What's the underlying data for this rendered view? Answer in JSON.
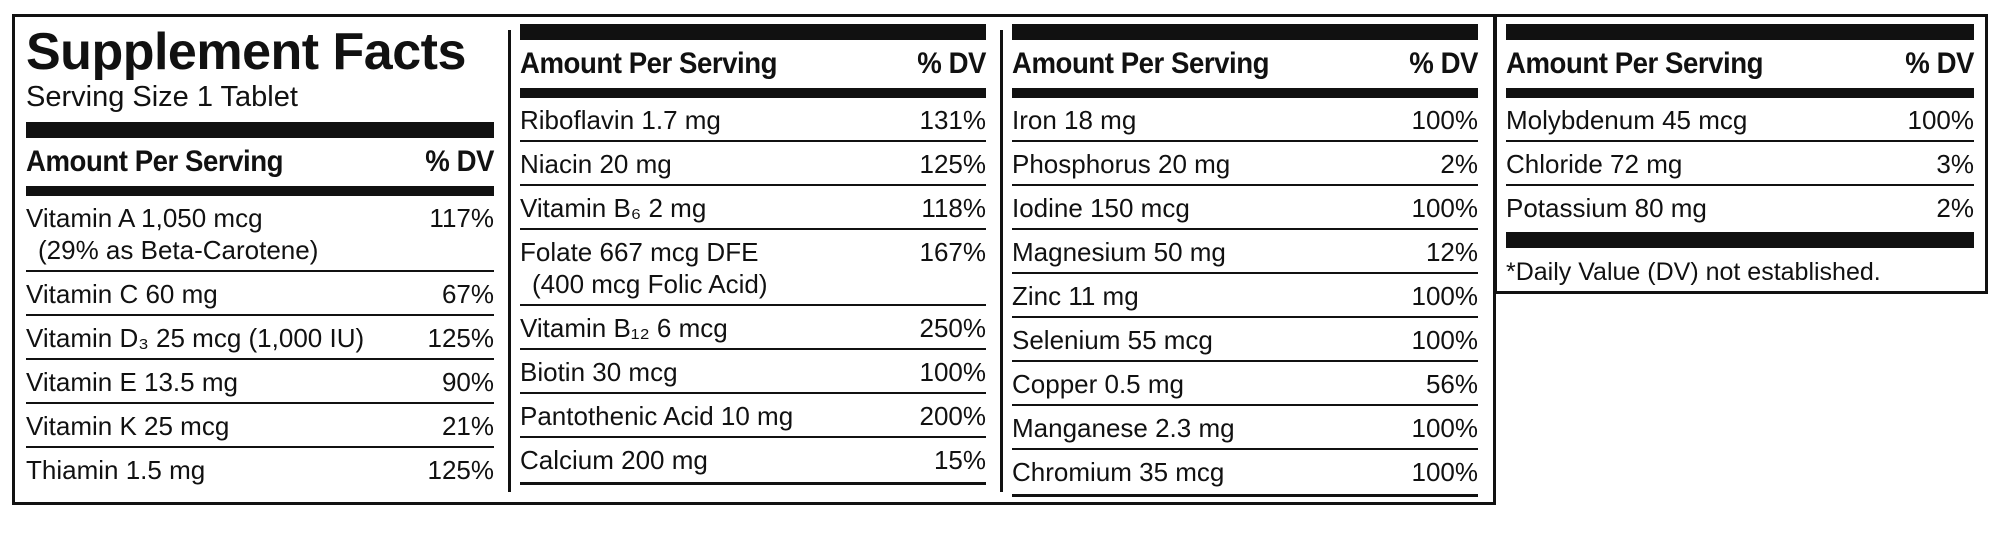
{
  "title": "Supplement Facts",
  "serving_size": "Serving Size 1 Tablet",
  "header": {
    "amount": "Amount Per Serving",
    "dv": "% DV"
  },
  "columns": [
    {
      "rows": [
        {
          "name": "Vitamin A 1,050 mcg",
          "sub": "(29% as Beta-Carotene)",
          "dv": "117%"
        },
        {
          "name": "Vitamin C 60 mg",
          "dv": "67%"
        },
        {
          "name": "Vitamin D₃ 25 mcg (1,000 IU)",
          "dv": "125%"
        },
        {
          "name": "Vitamin E 13.5 mg",
          "dv": "90%"
        },
        {
          "name": "Vitamin K 25 mcg",
          "dv": "21%"
        },
        {
          "name": "Thiamin 1.5 mg",
          "dv": "125%"
        }
      ]
    },
    {
      "rows": [
        {
          "name": "Riboflavin 1.7 mg",
          "dv": "131%"
        },
        {
          "name": "Niacin 20 mg",
          "dv": "125%"
        },
        {
          "name": "Vitamin B₆ 2 mg",
          "dv": "118%"
        },
        {
          "name": "Folate 667 mcg DFE",
          "sub": "(400 mcg Folic Acid)",
          "dv": "167%"
        },
        {
          "name": "Vitamin B₁₂ 6 mcg",
          "dv": "250%"
        },
        {
          "name": "Biotin 30 mcg",
          "dv": "100%"
        },
        {
          "name": "Pantothenic Acid 10 mg",
          "dv": "200%"
        },
        {
          "name": "Calcium 200 mg",
          "dv": "15%"
        }
      ]
    },
    {
      "rows": [
        {
          "name": "Iron 18 mg",
          "dv": "100%"
        },
        {
          "name": "Phosphorus 20 mg",
          "dv": "2%"
        },
        {
          "name": "Iodine 150 mcg",
          "dv": "100%"
        },
        {
          "name": "Magnesium 50 mg",
          "dv": "12%"
        },
        {
          "name": "Zinc 11 mg",
          "dv": "100%"
        },
        {
          "name": "Selenium 55 mcg",
          "dv": "100%"
        },
        {
          "name": "Copper 0.5 mg",
          "dv": "56%"
        },
        {
          "name": "Manganese 2.3 mg",
          "dv": "100%"
        },
        {
          "name": "Chromium 35 mcg",
          "dv": "100%"
        }
      ]
    },
    {
      "rows": [
        {
          "name": "Molybdenum 45 mcg",
          "dv": "100%"
        },
        {
          "name": "Chloride 72 mg",
          "dv": "3%"
        },
        {
          "name": "Potassium 80 mg",
          "dv": "2%"
        }
      ]
    }
  ],
  "footnote": "*Daily Value (DV) not established."
}
